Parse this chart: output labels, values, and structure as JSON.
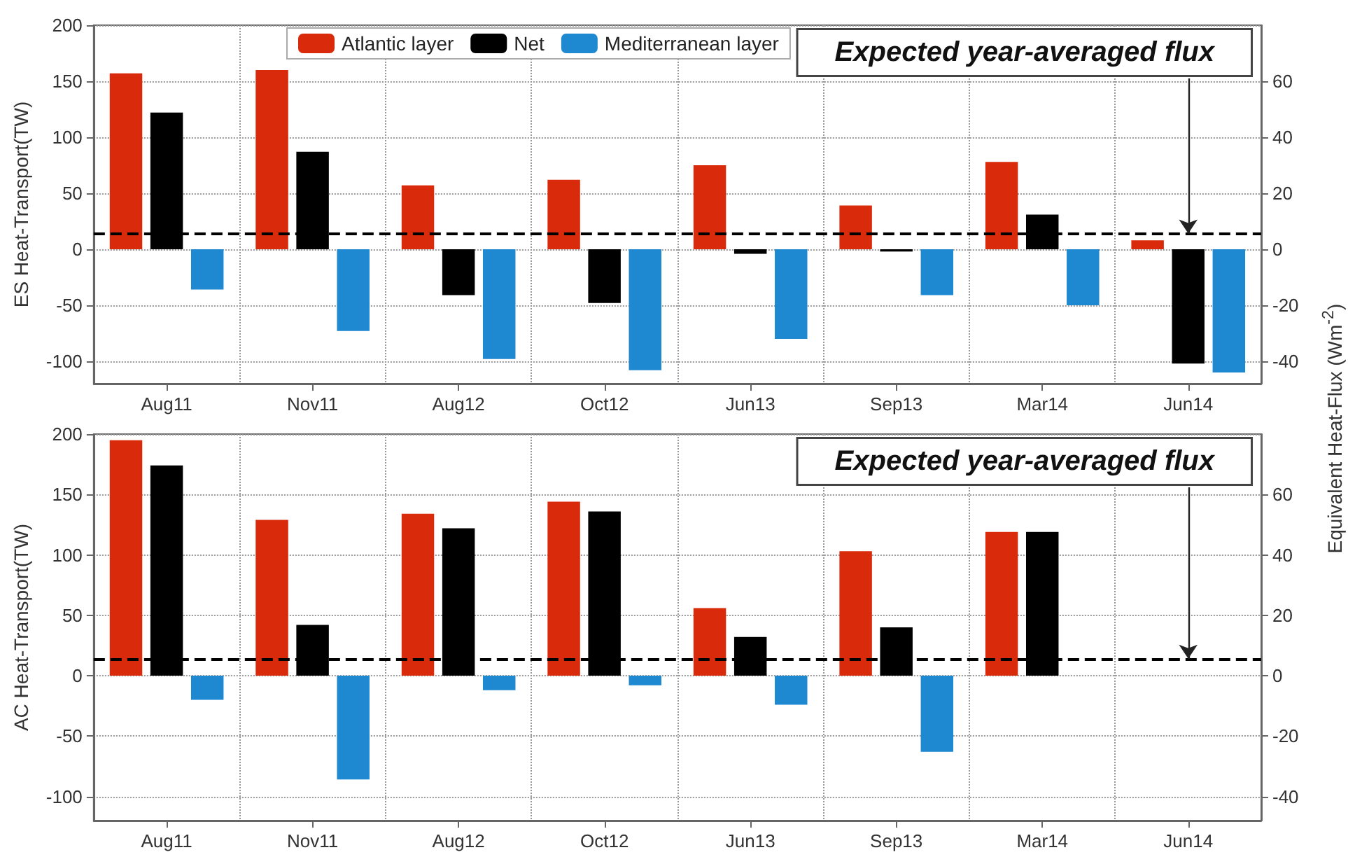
{
  "chart_data": [
    {
      "type": "bar",
      "ylabel": "ES Heat-Transport(TW)",
      "y2label": "Equivalent Heat-Flux (Wm$^{-2}$)",
      "categories": [
        "Aug11",
        "Nov11",
        "Aug12",
        "Oct12",
        "Jun13",
        "Sep13",
        "Mar14",
        "Jun14"
      ],
      "series": [
        {
          "name": "Atlantic layer",
          "color": "#d92b0b",
          "values": [
            157,
            160,
            57,
            62,
            75,
            39,
            78,
            8
          ]
        },
        {
          "name": "Net",
          "color": "#000000",
          "values": [
            122,
            87,
            -41,
            -48,
            -4,
            -2,
            31,
            -102
          ]
        },
        {
          "name": "Mediterranean layer",
          "color": "#1e88d0",
          "values": [
            -36,
            -73,
            -98,
            -108,
            -80,
            -41,
            -50,
            -110
          ]
        }
      ],
      "ylim": [
        -120,
        200
      ],
      "yticks": [
        -100,
        -50,
        0,
        50,
        100,
        150,
        200
      ],
      "y2lim": [
        -48,
        80
      ],
      "y2ticks": [
        -40,
        -20,
        0,
        20,
        40,
        60
      ],
      "ref_lines": [
        {
          "axis": "y",
          "value": 14,
          "color": "#000000",
          "line_style": "dashed"
        }
      ],
      "annotations": [
        {
          "text": "Expected year-averaged flux",
          "x": "Jun14",
          "y": 14
        }
      ],
      "grid": true,
      "legend": "top"
    },
    {
      "type": "bar",
      "ylabel": "AC Heat-Transport(TW)",
      "categories": [
        "Aug11",
        "Nov11",
        "Aug12",
        "Oct12",
        "Jun13",
        "Sep13",
        "Mar14",
        "Jun14"
      ],
      "series": [
        {
          "color": "#d92b0b",
          "values": [
            195,
            129,
            134,
            144,
            56,
            103,
            119,
            null
          ]
        },
        {
          "color": "#000000",
          "values": [
            174,
            42,
            122,
            136,
            32,
            40,
            119,
            null
          ]
        },
        {
          "color": "#1e88d0",
          "values": [
            -20,
            -86,
            -12,
            -8,
            -24,
            -63,
            null,
            null
          ]
        }
      ],
      "ylim": [
        -120,
        200
      ],
      "yticks": [
        -100,
        -50,
        0,
        50,
        100,
        150,
        200
      ],
      "y2lim": [
        -48,
        80
      ],
      "y2ticks": [
        -40,
        -20,
        0,
        20,
        40,
        60
      ],
      "ref_lines": [
        {
          "axis": "y",
          "value": 14,
          "color": "#000000",
          "line_style": "dashed"
        }
      ],
      "annotations": [
        {
          "text": "Expected year-averaged flux",
          "x": "Jun14",
          "y": 14
        }
      ],
      "grid": true,
      "legend": false
    }
  ]
}
